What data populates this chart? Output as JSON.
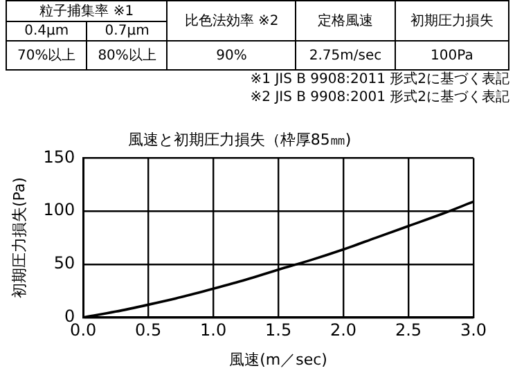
{
  "chart_data": [
    {
      "type": "other",
      "annotations": [
        "粒子捕集率 ※1",
        "0.4μm",
        "0.7μm",
        "比色法効率 ※2",
        "定格風速",
        "初期圧力損失",
        "70%以上",
        "80%以上",
        "90%",
        "2.75m/sec",
        "100Pa",
        "※1 JIS B 9908:2011 形式2に基づく表記",
        "※2 JIS B 9908:2001 形式2に基づく表記"
      ]
    },
    {
      "type": "line",
      "title": "風速と初期圧力損失（枠厚85㎜)",
      "xlabel": "風速(m／sec)",
      "ylabel": "初期圧力損失(Pa)",
      "x": [
        0,
        0.25,
        0.5,
        0.75,
        1.0,
        1.25,
        1.5,
        1.75,
        2.0,
        2.25,
        2.5,
        2.75,
        3.0
      ],
      "series": [
        {
          "color": "#000000",
          "values": [
            0,
            5.5,
            12,
            19,
            27,
            35.5,
            45,
            54,
            64,
            75,
            86,
            97,
            109
          ]
        }
      ],
      "xlim": [
        0,
        3
      ],
      "xticks": [
        {
          "value": 0,
          "label": "0.0"
        },
        {
          "value": 0.5,
          "label": "0.5"
        },
        {
          "value": 1,
          "label": "1.0"
        },
        {
          "value": 1.5,
          "label": "1.5"
        },
        {
          "value": 2,
          "label": "2.0"
        },
        {
          "value": 2.5,
          "label": "2.5"
        },
        {
          "value": 3,
          "label": "3.0"
        }
      ],
      "ylim": [
        0,
        150
      ],
      "yticks": [
        0,
        50,
        100,
        150
      ],
      "grid": true,
      "legend": false,
      "marker": "none",
      "line_style": "solid"
    }
  ]
}
